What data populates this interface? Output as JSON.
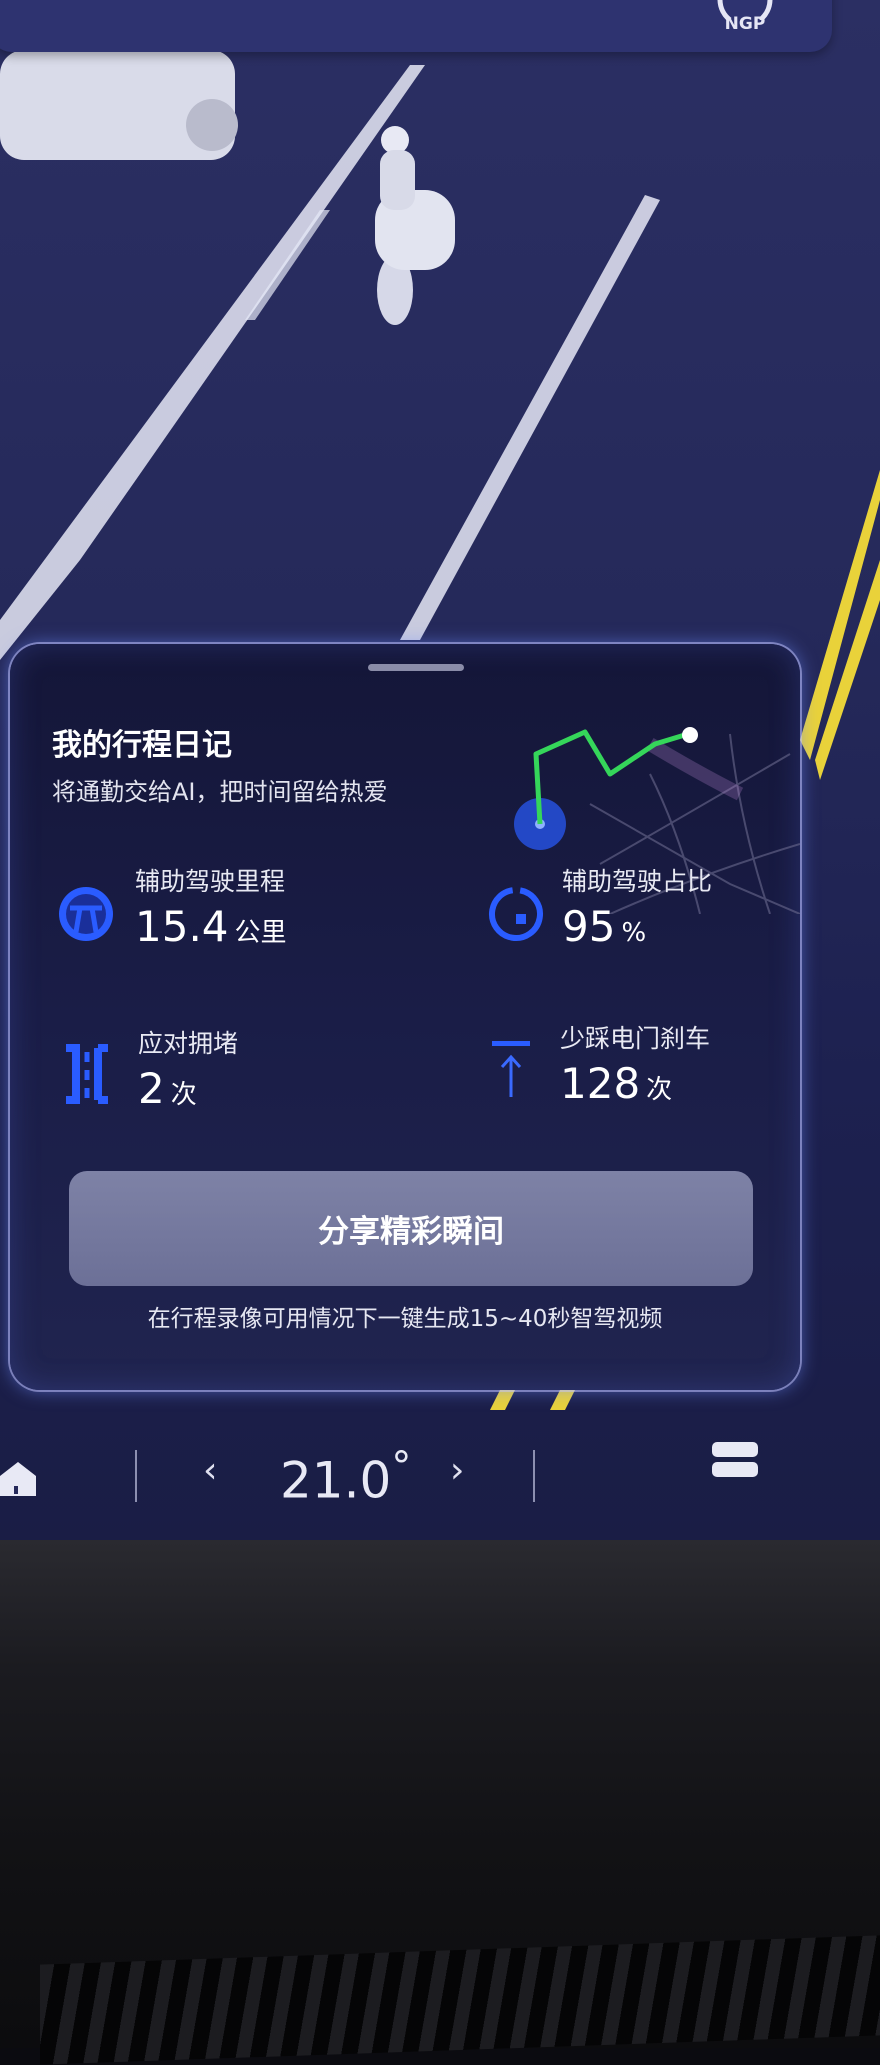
{
  "status_bar": {
    "ngp_label": "NGP"
  },
  "card": {
    "title": "我的行程日记",
    "subtitle": "将通勤交给AI，把时间留给热爱",
    "stats": [
      {
        "label": "辅助驾驶里程",
        "value": "15.4",
        "unit": "公里",
        "icon": "road-icon"
      },
      {
        "label": "辅助驾驶占比",
        "value": "95",
        "unit": "%",
        "icon": "ring-gauge-icon",
        "percent": 95
      },
      {
        "label": "应对拥堵",
        "value": "2",
        "unit": "次",
        "icon": "congestion-icon"
      },
      {
        "label": "少踩电门刹车",
        "value": "128",
        "unit": "次",
        "icon": "pedal-icon"
      }
    ],
    "share_button": "分享精彩瞬间",
    "note": "在行程录像可用情况下一键生成15~40秒智驾视频"
  },
  "bottom_bar": {
    "temperature": "21.0",
    "degree": "°",
    "prev": "‹",
    "next": "›"
  },
  "colors": {
    "accent_blue": "#2a5cff",
    "route_green": "#35d65a",
    "lane_yellow": "#e9d23a"
  }
}
